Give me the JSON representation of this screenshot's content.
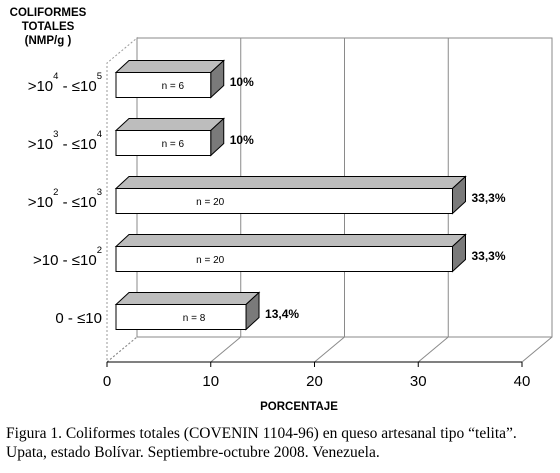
{
  "chart_data": {
    "type": "bar",
    "orientation": "horizontal",
    "y_title_lines": [
      "COLIFORMES",
      "TOTALES",
      "(NMP/g )"
    ],
    "categories": [
      {
        "base": ">10",
        "sup1": "4",
        "mid": " - ≤10",
        "sup2": "5"
      },
      {
        "base": ">10",
        "sup1": "3",
        "mid": " - ≤10",
        "sup2": "4"
      },
      {
        "base": ">10",
        "sup1": "2",
        "mid": " - ≤10",
        "sup2": "3"
      },
      {
        "base": ">10",
        "sup1": "",
        "mid": " - ≤10",
        "sup2": "2"
      },
      {
        "base": "0 - ≤10",
        "sup1": "",
        "mid": "",
        "sup2": ""
      }
    ],
    "values": [
      10,
      10,
      33.3,
      33.3,
      13.4
    ],
    "value_labels": [
      "10%",
      "10%",
      "33,3%",
      "33,3%",
      "13,4%"
    ],
    "n_labels": [
      "n = 6",
      "n = 6",
      "n = 20",
      "n = 20",
      "n = 8"
    ],
    "xlabel": "PORCENTAJE",
    "xlim": [
      0,
      40
    ],
    "xticks": [
      "0",
      "10",
      "20",
      "30",
      "40"
    ],
    "grid": "vertical"
  },
  "caption": "Figura 1. Coliformes totales (COVENIN 1104-96) en queso artesanal tipo “telita”. Upata, estado Bolívar. Septiembre-octubre 2008. Venezuela."
}
